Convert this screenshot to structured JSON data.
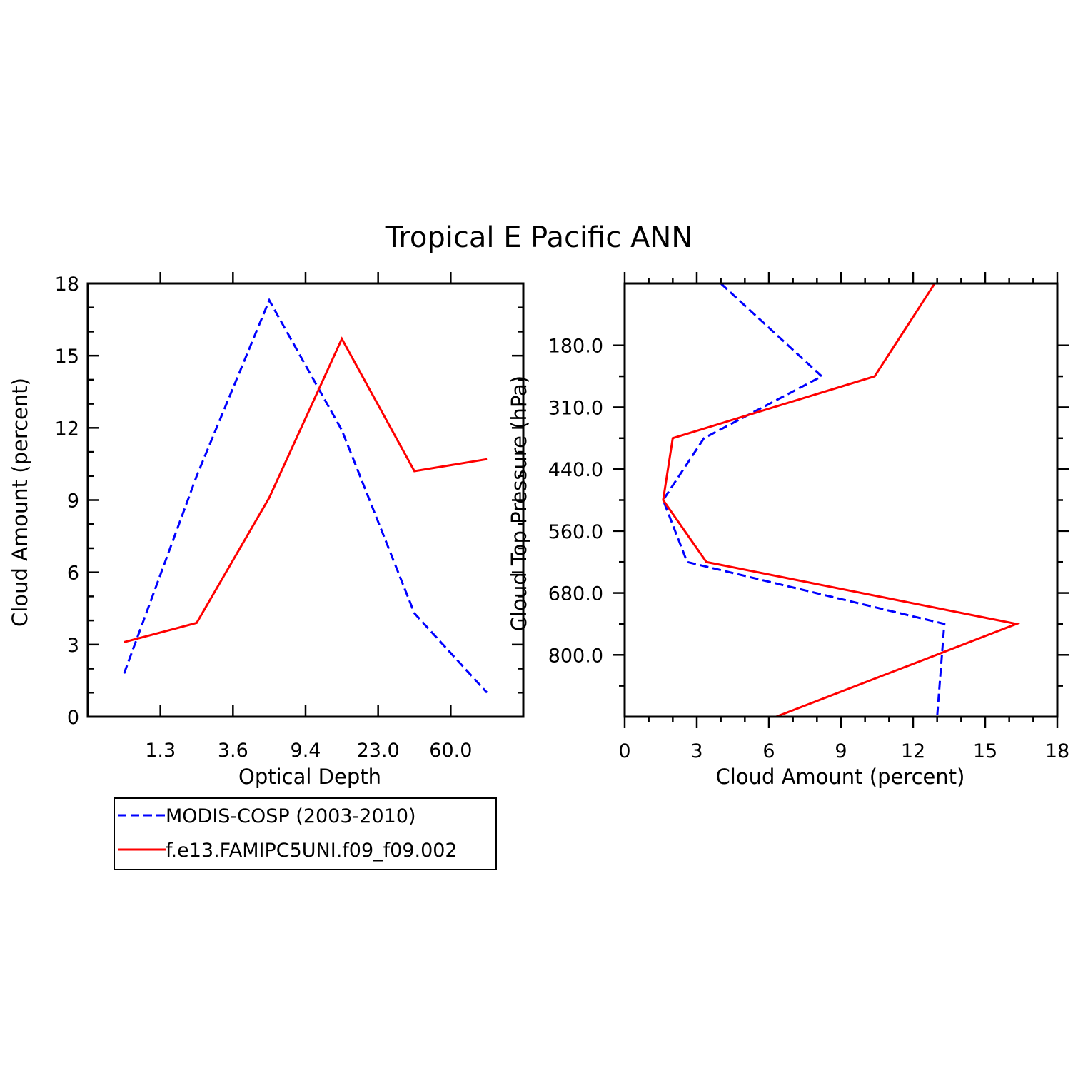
{
  "title": "Tropical E Pacific ANN",
  "colors": {
    "obs": "#0000ff",
    "model": "#ff0000",
    "axis": "#000000"
  },
  "legend": {
    "placement": "bottom-left",
    "entries": [
      {
        "label": "MODIS-COSP (2003-2010)",
        "color": "#0000ff",
        "dash": "dashed"
      },
      {
        "label": "f.e13.FAMIPC5UNI.f09_f09.002",
        "color": "#ff0000",
        "dash": "solid"
      }
    ]
  },
  "chart_data": [
    {
      "type": "line",
      "xlabel": "Optical Depth",
      "ylabel": "Cloud Amount (percent)",
      "x_bins": [
        1,
        2,
        3,
        4,
        5,
        6
      ],
      "xlim": [
        0.5,
        6.5
      ],
      "x_tick_labels": [
        "1.3",
        "3.6",
        "9.4",
        "23.0",
        "60.0"
      ],
      "ylim": [
        0,
        18
      ],
      "y_ticks": [
        0,
        3,
        6,
        9,
        12,
        15,
        18
      ],
      "series": [
        {
          "name": "MODIS-COSP (2003-2010)",
          "values": [
            1.8,
            10.0,
            17.3,
            11.9,
            4.3,
            1.0
          ]
        },
        {
          "name": "f.e13.FAMIPC5UNI.f09_f09.002",
          "values": [
            3.1,
            3.9,
            9.1,
            15.7,
            10.2,
            10.7
          ]
        }
      ]
    },
    {
      "type": "line",
      "orientation": "horizontal",
      "xlabel": "Cloud Amount (percent)",
      "ylabel": "Cloud Top Pressure (hPa)",
      "pressure_levels": [
        1,
        2,
        3,
        4,
        5,
        6,
        7
      ],
      "plim": [
        0.5,
        6.5
      ],
      "p_tick_labels": [
        "180.0",
        "310.0",
        "440.0",
        "560.0",
        "680.0",
        "800.0"
      ],
      "xlim": [
        0,
        18
      ],
      "x_ticks": [
        0,
        3,
        6,
        9,
        12,
        15,
        18
      ],
      "series": [
        {
          "name": "MODIS-COSP (2003-2010)",
          "values": [
            4.0,
            8.2,
            3.3,
            1.6,
            2.6,
            13.3,
            13.0
          ]
        },
        {
          "name": "f.e13.FAMIPC5UNI.f09_f09.002",
          "values": [
            12.9,
            10.4,
            2.0,
            1.6,
            3.4,
            16.3,
            6.3
          ]
        }
      ]
    }
  ]
}
